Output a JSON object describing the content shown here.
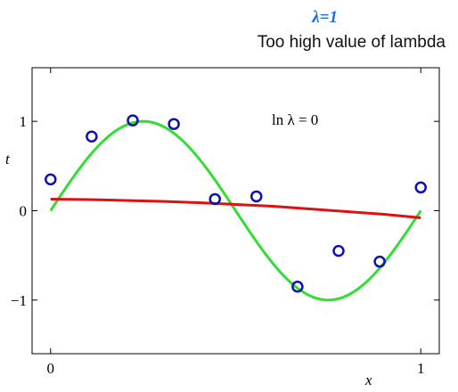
{
  "header": {
    "title": "λ=1",
    "subtitle": "Too high value of lambda"
  },
  "chart_data": {
    "type": "scatter",
    "title": "λ=1",
    "subtitle": "Too high value of lambda",
    "xlabel": "x",
    "ylabel": "t",
    "xlim": [
      -0.05,
      1.05
    ],
    "ylim": [
      -1.6,
      1.6
    ],
    "xticks": [
      0,
      1
    ],
    "yticks": [
      -1,
      0,
      1
    ],
    "xtick_labels": [
      "0",
      "1"
    ],
    "ytick_labels": [
      "−1",
      "0",
      "1"
    ],
    "annotation": "ln λ = 0",
    "grid": false,
    "series": [
      {
        "kind": "points",
        "color": "#1010b0",
        "x": [
          0.0,
          0.111,
          0.222,
          0.333,
          0.444,
          0.556,
          0.667,
          0.778,
          0.889,
          1.0
        ],
        "y": [
          0.35,
          0.83,
          1.01,
          0.97,
          0.13,
          0.16,
          -0.85,
          -0.45,
          -0.57,
          0.26
        ]
      },
      {
        "kind": "curve",
        "color": "#33dd33",
        "function": "sin(2πx)",
        "x": [
          0,
          0.05,
          0.1,
          0.15,
          0.2,
          0.25,
          0.3,
          0.35,
          0.4,
          0.45,
          0.5,
          0.55,
          0.6,
          0.65,
          0.7,
          0.75,
          0.8,
          0.85,
          0.9,
          0.95,
          1.0
        ],
        "y": [
          0,
          0.309,
          0.588,
          0.809,
          0.951,
          1.0,
          0.951,
          0.809,
          0.588,
          0.309,
          0,
          -0.309,
          -0.588,
          -0.809,
          -0.951,
          -1.0,
          -0.951,
          -0.809,
          -0.588,
          -0.309,
          0
        ]
      },
      {
        "kind": "curve",
        "color": "#dd1111",
        "x": [
          0,
          0.1,
          0.2,
          0.3,
          0.4,
          0.5,
          0.6,
          0.7,
          0.8,
          0.9,
          1.0
        ],
        "y": [
          0.13,
          0.125,
          0.115,
          0.105,
          0.09,
          0.07,
          0.05,
          0.02,
          -0.01,
          -0.04,
          -0.08
        ]
      }
    ],
    "colors": {
      "points": "#1010b0",
      "true_curve": "#33dd33",
      "fit_curve": "#dd1111"
    }
  }
}
